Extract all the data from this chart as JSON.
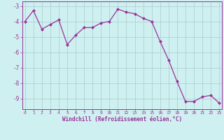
{
  "x": [
    0,
    1,
    2,
    3,
    4,
    5,
    6,
    7,
    8,
    9,
    10,
    11,
    12,
    13,
    14,
    15,
    16,
    17,
    18,
    19,
    20,
    21,
    22,
    23
  ],
  "y": [
    -4.0,
    -3.3,
    -4.5,
    -4.2,
    -3.9,
    -5.5,
    -4.9,
    -4.4,
    -4.4,
    -4.1,
    -4.0,
    -3.2,
    -3.4,
    -3.5,
    -3.8,
    -4.0,
    -5.3,
    -6.5,
    -7.9,
    -9.2,
    -9.2,
    -8.9,
    -8.8,
    -9.3
  ],
  "line_color": "#993399",
  "marker": "D",
  "marker_size": 2.0,
  "bg_color": "#cff0f0",
  "grid_color": "#aacccc",
  "xlabel": "Windchill (Refroidissement éolien,°C)",
  "xlabel_color": "#993399",
  "tick_color": "#993399",
  "ylim": [
    -9.7,
    -2.7
  ],
  "xlim": [
    -0.3,
    23.3
  ],
  "yticks": [
    -9,
    -8,
    -7,
    -6,
    -5,
    -4,
    -3
  ],
  "xticks": [
    0,
    1,
    2,
    3,
    4,
    5,
    6,
    7,
    8,
    9,
    10,
    11,
    12,
    13,
    14,
    15,
    16,
    17,
    18,
    19,
    20,
    21,
    22,
    23
  ]
}
